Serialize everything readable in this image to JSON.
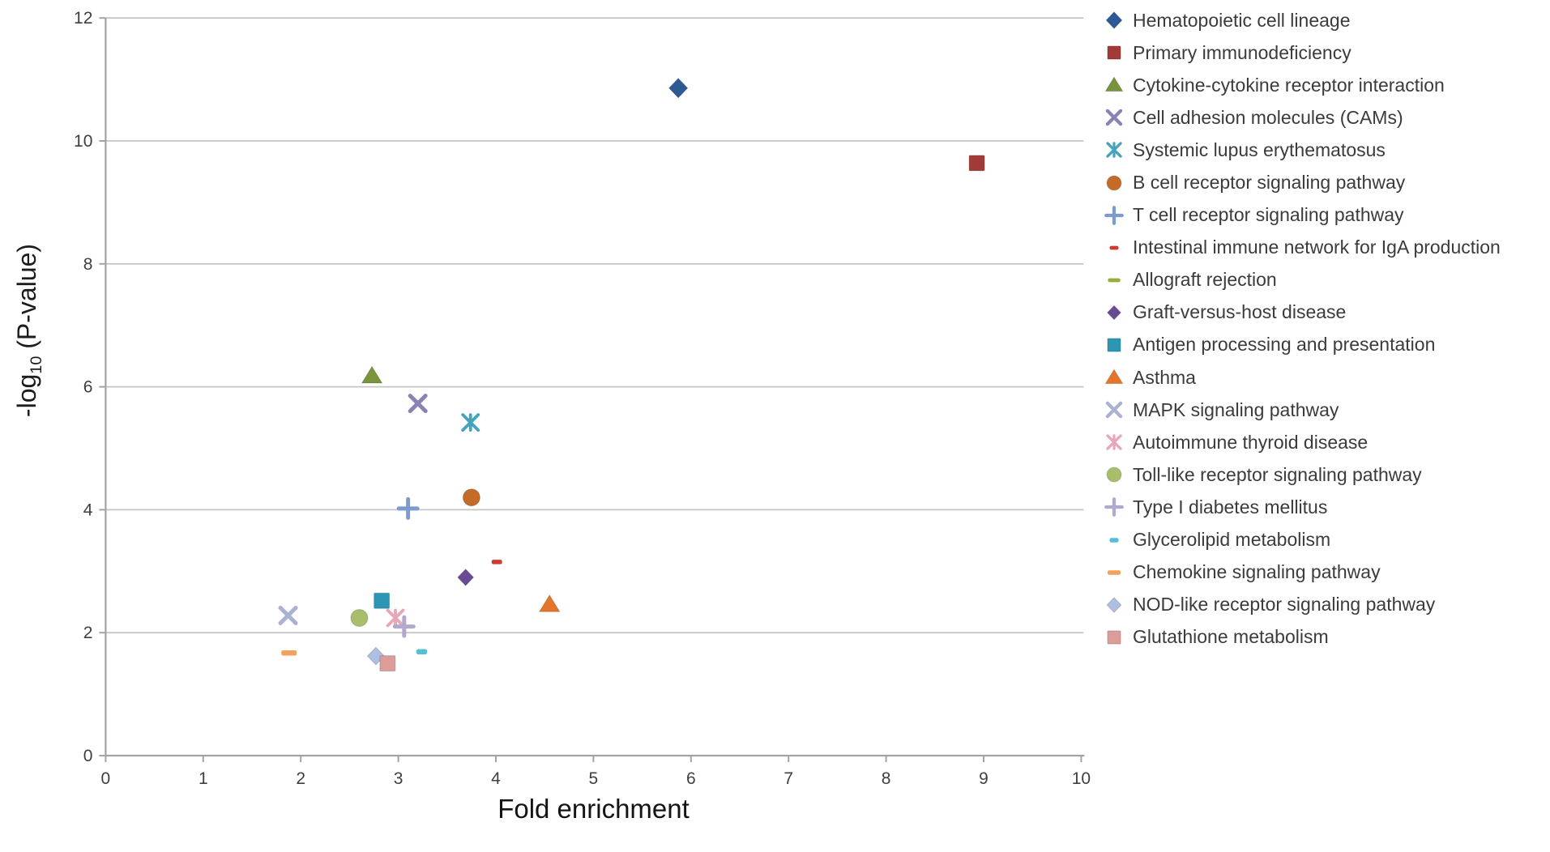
{
  "chart_data": {
    "type": "scatter",
    "title": "",
    "xlabel": "Fold enrichment",
    "ylabel": "-log10 (P-value)",
    "ylabel_rich": {
      "prefix": "-log",
      "sub": "10",
      "suffix": " (P-value)"
    },
    "xlim": [
      0,
      10
    ],
    "ylim": [
      0,
      12
    ],
    "x_ticks": [
      0,
      1,
      2,
      3,
      4,
      5,
      6,
      7,
      8,
      9,
      10
    ],
    "y_ticks": [
      0,
      2,
      4,
      6,
      8,
      10,
      12
    ],
    "grid": "horizontal-only",
    "legend_position": "right",
    "series": [
      {
        "name": "Hematopoietic cell lineage",
        "marker": "diamond",
        "color": "#2d5a97",
        "x": 5.87,
        "y": 10.86
      },
      {
        "name": "Primary immunodeficiency",
        "marker": "square",
        "color": "#a23b38",
        "x": 8.93,
        "y": 9.64
      },
      {
        "name": "Cytokine-cytokine receptor interaction",
        "marker": "triangle",
        "color": "#7a943d",
        "x": 2.73,
        "y": 6.18
      },
      {
        "name": "Cell adhesion molecules (CAMs)",
        "marker": "x",
        "color": "#8b82b4",
        "x": 3.2,
        "y": 5.73
      },
      {
        "name": "Systemic lupus erythematosus",
        "marker": "asterisk",
        "color": "#45a3be",
        "x": 3.74,
        "y": 5.42
      },
      {
        "name": "B cell receptor signaling pathway",
        "marker": "circle",
        "color": "#c66a27",
        "x": 3.75,
        "y": 4.2
      },
      {
        "name": "T cell receptor signaling pathway",
        "marker": "plus",
        "color": "#7e9bd1",
        "x": 3.1,
        "y": 4.02
      },
      {
        "name": "Intestinal immune network for IgA production",
        "marker": "dash",
        "color": "#cd3b33",
        "x": 4.01,
        "y": 3.15,
        "marker_w": 13,
        "marker_h": 5.5
      },
      {
        "name": "Allograft rejection",
        "marker": "dash",
        "color": "#93af3e",
        "x": 2.6,
        "y": 2.25,
        "marker_w": 18,
        "marker_h": 5.5,
        "note": "hidden beneath Toll-like receptor point"
      },
      {
        "name": "Graft-versus-host disease",
        "marker": "diamond",
        "color": "#6a4b93",
        "x": 3.69,
        "y": 2.9,
        "marker_scale": 0.85
      },
      {
        "name": "Antigen processing and presentation",
        "marker": "square",
        "color": "#2d96b5",
        "x": 2.83,
        "y": 2.52
      },
      {
        "name": "Asthma",
        "marker": "triangle",
        "color": "#e5752a",
        "x": 4.55,
        "y": 2.46
      },
      {
        "name": "MAPK signaling pathway",
        "marker": "x",
        "color": "#aab2d4",
        "x": 1.87,
        "y": 2.28
      },
      {
        "name": "Autoimmune thyroid disease",
        "marker": "asterisk",
        "color": "#e8a7b6",
        "x": 2.97,
        "y": 2.24
      },
      {
        "name": "Toll-like receptor signaling pathway",
        "marker": "circle",
        "color": "#a8be6b",
        "x": 2.6,
        "y": 2.24
      },
      {
        "name": "Type I diabetes mellitus",
        "marker": "plus",
        "color": "#b3a8ce",
        "x": 3.06,
        "y": 2.1
      },
      {
        "name": "Glycerolipid metabolism",
        "marker": "dash",
        "color": "#55bfd4",
        "x": 3.24,
        "y": 1.69,
        "marker_w": 13,
        "marker_h": 6.5
      },
      {
        "name": "Chemokine signaling pathway",
        "marker": "dash",
        "color": "#f2a25c",
        "x": 1.88,
        "y": 1.67,
        "marker_w": 19,
        "marker_h": 6.5
      },
      {
        "name": "NOD-like receptor signaling pathway",
        "marker": "diamond",
        "color": "#aec0e2",
        "x": 2.77,
        "y": 1.62,
        "marker_scale": 0.9
      },
      {
        "name": "Glutathione metabolism",
        "marker": "square",
        "color": "#dc9c9a",
        "x": 2.89,
        "y": 1.5
      }
    ]
  },
  "styles": {
    "background": "#ffffff",
    "gridline_color": "#c6c6c6",
    "axis_color": "#a3a3a3",
    "tick_label_color": "#3f3f3f",
    "legend_text_color": "#3b3b3b",
    "axis_title_color": "#141414"
  }
}
